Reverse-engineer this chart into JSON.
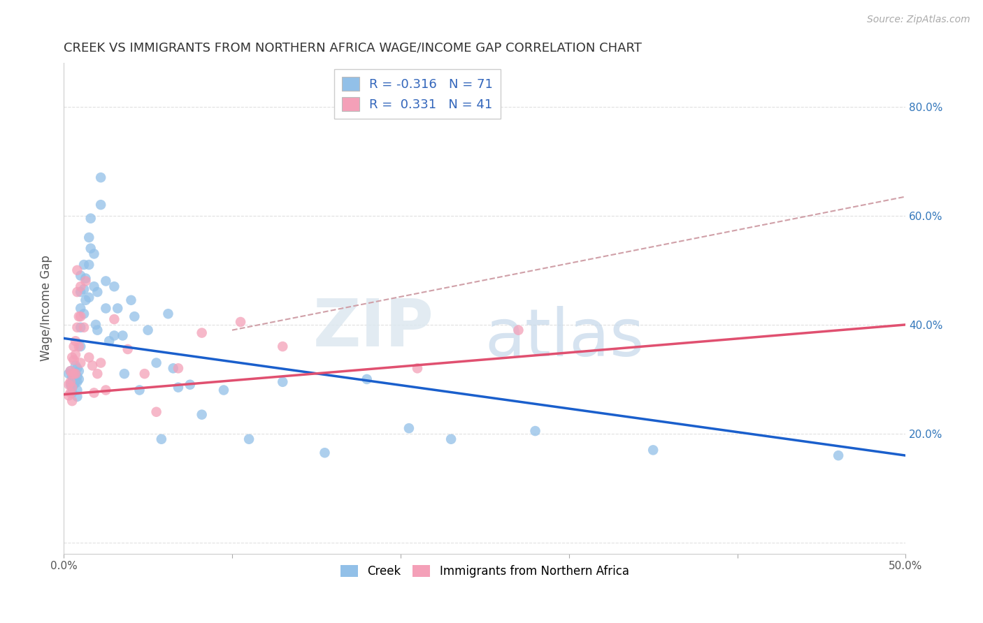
{
  "title": "CREEK VS IMMIGRANTS FROM NORTHERN AFRICA WAGE/INCOME GAP CORRELATION CHART",
  "source": "Source: ZipAtlas.com",
  "ylabel": "Wage/Income Gap",
  "creek_color": "#92c0e8",
  "immig_color": "#f4a0b8",
  "creek_line_color": "#1a5fcc",
  "immig_line_color": "#e05070",
  "dashed_line_color": "#d0a0a8",
  "background_color": "#ffffff",
  "grid_color": "#e0e0e0",
  "xlim": [
    0.0,
    0.5
  ],
  "ylim": [
    -0.02,
    0.88
  ],
  "creek_R": -0.316,
  "creek_N": 71,
  "immig_R": 0.331,
  "immig_N": 41,
  "creek_x": [
    0.003,
    0.004,
    0.004,
    0.005,
    0.005,
    0.005,
    0.005,
    0.006,
    0.006,
    0.006,
    0.007,
    0.007,
    0.007,
    0.008,
    0.008,
    0.008,
    0.008,
    0.008,
    0.009,
    0.009,
    0.01,
    0.01,
    0.01,
    0.01,
    0.01,
    0.012,
    0.012,
    0.012,
    0.013,
    0.013,
    0.015,
    0.015,
    0.015,
    0.016,
    0.016,
    0.018,
    0.018,
    0.019,
    0.02,
    0.02,
    0.022,
    0.022,
    0.025,
    0.025,
    0.027,
    0.03,
    0.03,
    0.032,
    0.035,
    0.036,
    0.04,
    0.042,
    0.045,
    0.05,
    0.055,
    0.058,
    0.062,
    0.065,
    0.068,
    0.075,
    0.082,
    0.095,
    0.11,
    0.13,
    0.155,
    0.18,
    0.205,
    0.23,
    0.28,
    0.35,
    0.46
  ],
  "creek_y": [
    0.31,
    0.29,
    0.315,
    0.305,
    0.295,
    0.285,
    0.275,
    0.31,
    0.3,
    0.29,
    0.325,
    0.31,
    0.295,
    0.32,
    0.305,
    0.295,
    0.28,
    0.268,
    0.315,
    0.3,
    0.49,
    0.46,
    0.43,
    0.395,
    0.36,
    0.51,
    0.465,
    0.42,
    0.485,
    0.445,
    0.56,
    0.51,
    0.45,
    0.595,
    0.54,
    0.53,
    0.47,
    0.4,
    0.46,
    0.39,
    0.67,
    0.62,
    0.48,
    0.43,
    0.37,
    0.47,
    0.38,
    0.43,
    0.38,
    0.31,
    0.445,
    0.415,
    0.28,
    0.39,
    0.33,
    0.19,
    0.42,
    0.32,
    0.285,
    0.29,
    0.235,
    0.28,
    0.19,
    0.295,
    0.165,
    0.3,
    0.21,
    0.19,
    0.205,
    0.17,
    0.16
  ],
  "immig_x": [
    0.003,
    0.003,
    0.004,
    0.004,
    0.004,
    0.005,
    0.005,
    0.005,
    0.005,
    0.006,
    0.006,
    0.006,
    0.007,
    0.007,
    0.007,
    0.008,
    0.008,
    0.008,
    0.009,
    0.009,
    0.01,
    0.01,
    0.01,
    0.012,
    0.013,
    0.015,
    0.017,
    0.018,
    0.02,
    0.022,
    0.025,
    0.03,
    0.038,
    0.048,
    0.055,
    0.068,
    0.082,
    0.105,
    0.13,
    0.21,
    0.27
  ],
  "immig_y": [
    0.29,
    0.27,
    0.315,
    0.295,
    0.275,
    0.34,
    0.31,
    0.285,
    0.26,
    0.36,
    0.335,
    0.31,
    0.37,
    0.345,
    0.31,
    0.5,
    0.46,
    0.395,
    0.415,
    0.36,
    0.47,
    0.415,
    0.33,
    0.395,
    0.48,
    0.34,
    0.325,
    0.275,
    0.31,
    0.33,
    0.28,
    0.41,
    0.355,
    0.31,
    0.24,
    0.32,
    0.385,
    0.405,
    0.36,
    0.32,
    0.39
  ],
  "creek_line_x0": 0.0,
  "creek_line_x1": 0.5,
  "creek_line_y0": 0.375,
  "creek_line_y1": 0.16,
  "immig_line_x0": 0.0,
  "immig_line_x1": 0.5,
  "immig_line_y0": 0.272,
  "immig_line_y1": 0.4,
  "dash_line_x0": 0.1,
  "dash_line_x1": 0.5,
  "dash_line_y0": 0.39,
  "dash_line_y1": 0.635,
  "ytick_positions": [
    0.0,
    0.2,
    0.4,
    0.6,
    0.8
  ],
  "ytick_labels_right": [
    "",
    "20.0%",
    "40.0%",
    "60.0%",
    "80.0%"
  ],
  "xtick_positions": [
    0.0,
    0.1,
    0.2,
    0.3,
    0.4,
    0.5
  ],
  "xtick_labels": [
    "0.0%",
    "",
    "",
    "",
    "",
    "50.0%"
  ]
}
